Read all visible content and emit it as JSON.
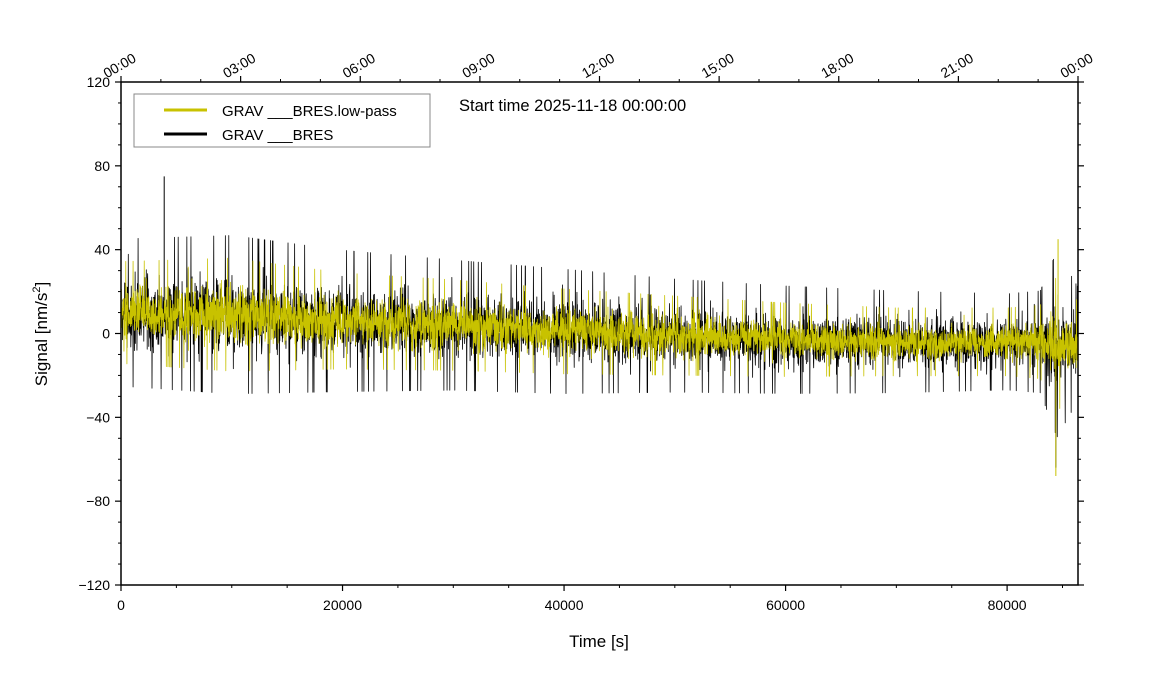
{
  "chart_data": {
    "type": "line",
    "title": "",
    "annotation": "Start time 2025-11-18 00:00:00",
    "xlabel": "Time [s]",
    "ylabel": "Signal [nm/s",
    "ylabel_sup": "2",
    "ylabel_end": "]",
    "xlim": [
      0,
      86400
    ],
    "ylim": [
      -120,
      120
    ],
    "x_ticks": [
      0,
      20000,
      40000,
      60000,
      80000
    ],
    "x_tick_labels": [
      "0",
      "20000",
      "40000",
      "60000",
      "80000"
    ],
    "y_ticks": [
      120,
      80,
      40,
      0,
      -40,
      -80,
      -120
    ],
    "y_tick_labels": [
      "120",
      "80",
      "40",
      "0",
      "−40",
      "−80",
      "−120"
    ],
    "top_axis": {
      "label_positions_s": [
        0,
        10800,
        21600,
        32400,
        43200,
        54000,
        64800,
        75600,
        86400
      ],
      "labels": [
        "00:00",
        "03:00",
        "06:00",
        "09:00",
        "12:00",
        "15:00",
        "18:00",
        "21:00",
        "00:00"
      ]
    },
    "legend_position": "top-left",
    "series": [
      {
        "name": "GRAV ___BRES.low-pass",
        "color": "#c8c200",
        "envelope": {
          "x": [
            0,
            10000,
            20000,
            30000,
            40000,
            50000,
            60000,
            70000,
            80000,
            83000,
            84500,
            86400
          ],
          "center": [
            10,
            9,
            6,
            4,
            1,
            -1,
            -3,
            -4,
            -4,
            -4,
            -5,
            -5
          ],
          "half_width": [
            18,
            20,
            17,
            16,
            15,
            14,
            13,
            12,
            12,
            13,
            24,
            15
          ]
        },
        "peaks": {
          "max": 45,
          "min": -68
        }
      },
      {
        "name": "GRAV ___BRES",
        "color": "#000000",
        "envelope": {
          "x": [
            0,
            10000,
            20000,
            30000,
            40000,
            50000,
            60000,
            70000,
            80000,
            83000,
            84500,
            86400
          ],
          "center": [
            10,
            9,
            6,
            4,
            1,
            -1,
            -3,
            -4,
            -4,
            -4,
            -5,
            -5
          ],
          "half_width": [
            26,
            28,
            25,
            23,
            22,
            20,
            19,
            18,
            17,
            18,
            33,
            20
          ]
        },
        "peaks": {
          "max": 75,
          "min": -64
        }
      }
    ]
  }
}
